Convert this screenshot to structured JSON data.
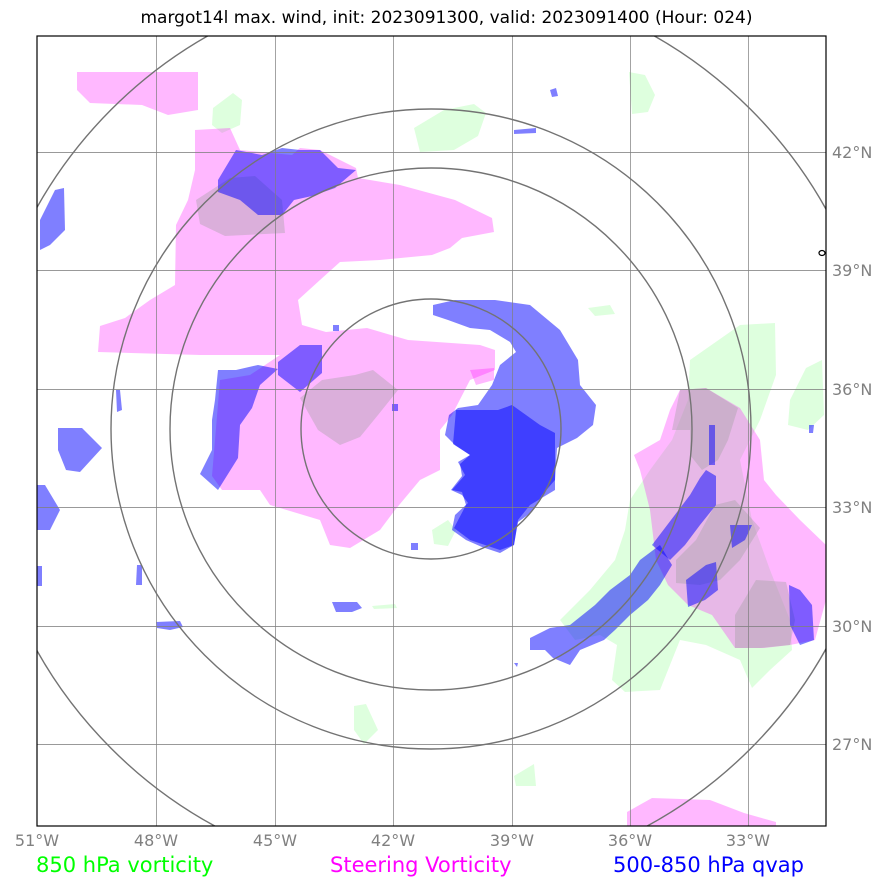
{
  "title": "margot14l max. wind, init: 2023091300, valid: 2023091400 (Hour: 024)",
  "lon_ticks": [
    "51°W",
    "48°W",
    "45°W",
    "42°W",
    "39°W",
    "36°W",
    "33°W"
  ],
  "lat_ticks": [
    "42°N",
    "39°N",
    "36°N",
    "33°N",
    "30°N",
    "27°N"
  ],
  "legend": {
    "vort850": "850 hPa vorticity",
    "steering": "Steering Vorticity",
    "qvap": "500-850 hPa qvap"
  },
  "colors": {
    "vort850": "#00ff00",
    "steering": "#ff00ff",
    "qvap": "#0000ff",
    "grid": "#808080",
    "rings": "#737373"
  },
  "map_extent": {
    "lon": [
      -51,
      -31
    ],
    "lat": [
      24.5,
      44.5
    ]
  },
  "storm_center": {
    "lon": -41,
    "lat": 35
  }
}
